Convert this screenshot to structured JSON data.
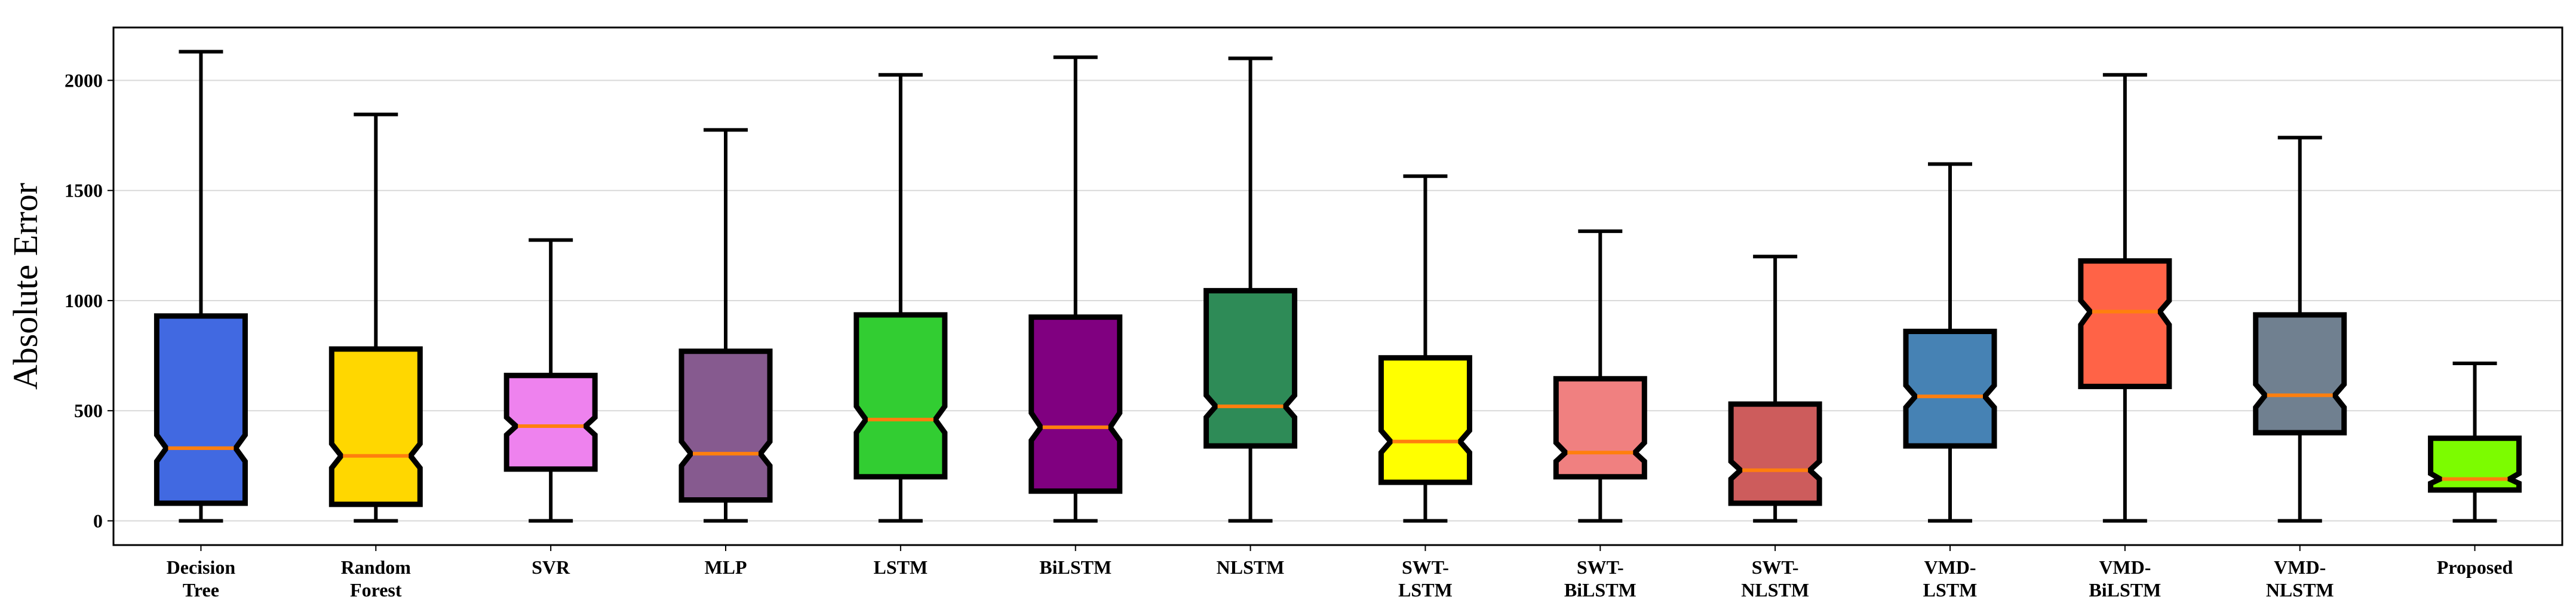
{
  "chart_data": {
    "type": "box",
    "ylabel": "Absolute Error",
    "xlabel": "",
    "ylim": [
      -110,
      2240
    ],
    "yticks": [
      0,
      500,
      1000,
      1500,
      2000
    ],
    "grid": "horizontal",
    "median_color": "#ff7f0e",
    "categories": [
      {
        "label": [
          "Decision",
          "Tree"
        ],
        "whisker_low": 0,
        "q1": 80,
        "median": 330,
        "q3": 930,
        "whisker_high": 2130,
        "notch_low": 270,
        "notch_high": 390,
        "color": "#4169e1"
      },
      {
        "label": [
          "Random",
          "Forest"
        ],
        "whisker_low": 0,
        "q1": 75,
        "median": 295,
        "q3": 780,
        "whisker_high": 1845,
        "notch_low": 240,
        "notch_high": 350,
        "color": "#ffd700"
      },
      {
        "label": [
          "SVR"
        ],
        "whisker_low": 0,
        "q1": 235,
        "median": 430,
        "q3": 660,
        "whisker_high": 1275,
        "notch_low": 390,
        "notch_high": 470,
        "color": "#ee82ee"
      },
      {
        "label": [
          "MLP"
        ],
        "whisker_low": 0,
        "q1": 95,
        "median": 305,
        "q3": 770,
        "whisker_high": 1775,
        "notch_low": 250,
        "notch_high": 360,
        "color": "#865a8f"
      },
      {
        "label": [
          "LSTM"
        ],
        "whisker_low": 0,
        "q1": 200,
        "median": 460,
        "q3": 935,
        "whisker_high": 2025,
        "notch_low": 400,
        "notch_high": 520,
        "color": "#32cd32"
      },
      {
        "label": [
          "BiLSTM"
        ],
        "whisker_low": 0,
        "q1": 135,
        "median": 425,
        "q3": 925,
        "whisker_high": 2105,
        "notch_low": 365,
        "notch_high": 490,
        "color": "#800080"
      },
      {
        "label": [
          "NLSTM"
        ],
        "whisker_low": 0,
        "q1": 340,
        "median": 520,
        "q3": 1045,
        "whisker_high": 2100,
        "notch_low": 470,
        "notch_high": 570,
        "color": "#2e8b57"
      },
      {
        "label": [
          "SWT-",
          "LSTM"
        ],
        "whisker_low": 0,
        "q1": 175,
        "median": 360,
        "q3": 740,
        "whisker_high": 1565,
        "notch_low": 310,
        "notch_high": 410,
        "color": "#ffff00"
      },
      {
        "label": [
          "SWT-",
          "BiLSTM"
        ],
        "whisker_low": 0,
        "q1": 200,
        "median": 310,
        "q3": 645,
        "whisker_high": 1315,
        "notch_low": 270,
        "notch_high": 355,
        "color": "#f08080"
      },
      {
        "label": [
          "SWT-",
          "NLSTM"
        ],
        "whisker_low": 0,
        "q1": 80,
        "median": 230,
        "q3": 530,
        "whisker_high": 1200,
        "notch_low": 190,
        "notch_high": 270,
        "color": "#cd5c5c"
      },
      {
        "label": [
          "VMD-",
          "LSTM"
        ],
        "whisker_low": 0,
        "q1": 340,
        "median": 565,
        "q3": 860,
        "whisker_high": 1620,
        "notch_low": 515,
        "notch_high": 615,
        "color": "#4682b4"
      },
      {
        "label": [
          "VMD-",
          "BiLSTM"
        ],
        "whisker_low": 0,
        "q1": 610,
        "median": 950,
        "q3": 1180,
        "whisker_high": 2025,
        "notch_low": 890,
        "notch_high": 1000,
        "color": "#ff6347"
      },
      {
        "label": [
          "VMD-",
          "NLSTM"
        ],
        "whisker_low": 0,
        "q1": 400,
        "median": 570,
        "q3": 935,
        "whisker_high": 1740,
        "notch_low": 515,
        "notch_high": 620,
        "color": "#708090"
      },
      {
        "label": [
          "Proposed"
        ],
        "whisker_low": 0,
        "q1": 140,
        "median": 190,
        "q3": 375,
        "whisker_high": 715,
        "notch_low": 170,
        "notch_high": 215,
        "color": "#7cfc00"
      }
    ]
  }
}
